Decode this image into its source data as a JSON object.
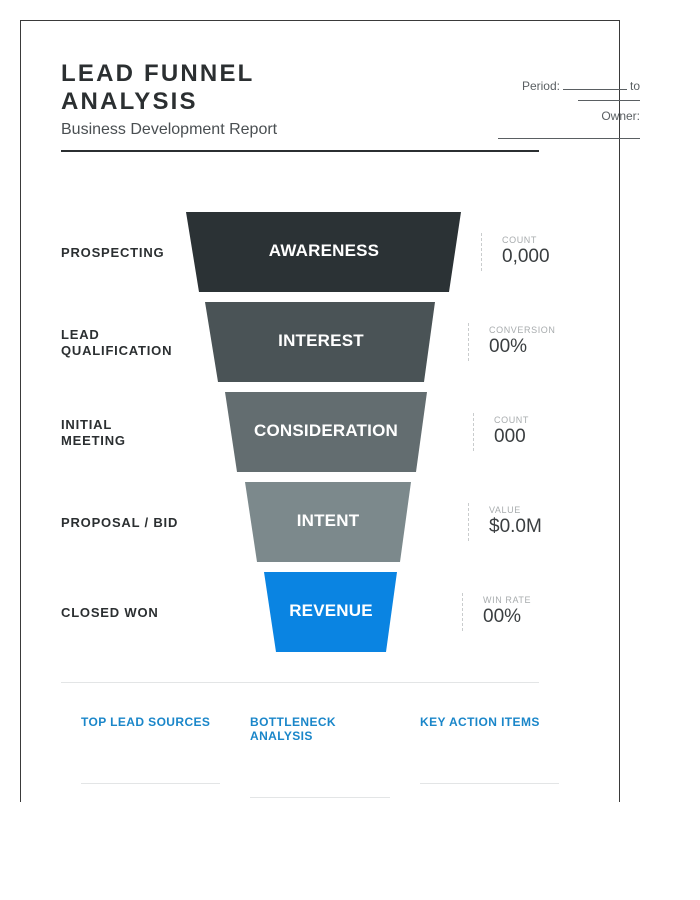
{
  "header": {
    "title": "LEAD FUNNEL ANALYSIS",
    "subtitle": "Business Development Report",
    "period_label": "Period:",
    "period_to": "to",
    "owner_label": "Owner:"
  },
  "stages": [
    {
      "label": "PROSPECTING",
      "name": "AWARENESS",
      "metric_label": "COUNT",
      "metric_value": "0,000",
      "color": "#2b3235"
    },
    {
      "label": "LEAD QUALIFICATION",
      "name": "INTEREST",
      "metric_label": "CONVERSION",
      "metric_value": "00%",
      "color": "#4a5356"
    },
    {
      "label": "INITIAL MEETING",
      "name": "CONSIDERATION",
      "metric_label": "COUNT",
      "metric_value": "000",
      "color": "#636d70"
    },
    {
      "label": "PROPOSAL / BID",
      "name": "INTENT",
      "metric_label": "VALUE",
      "metric_value": "$0.0M",
      "color": "#7c898c"
    },
    {
      "label": "CLOSED WON",
      "name": "REVENUE",
      "metric_label": "WIN RATE",
      "metric_value": "00%",
      "color": "#0a84e2"
    }
  ],
  "footer": {
    "sections": [
      "TOP LEAD SOURCES",
      "BOTTLENECK ANALYSIS",
      "KEY ACTION ITEMS"
    ]
  }
}
